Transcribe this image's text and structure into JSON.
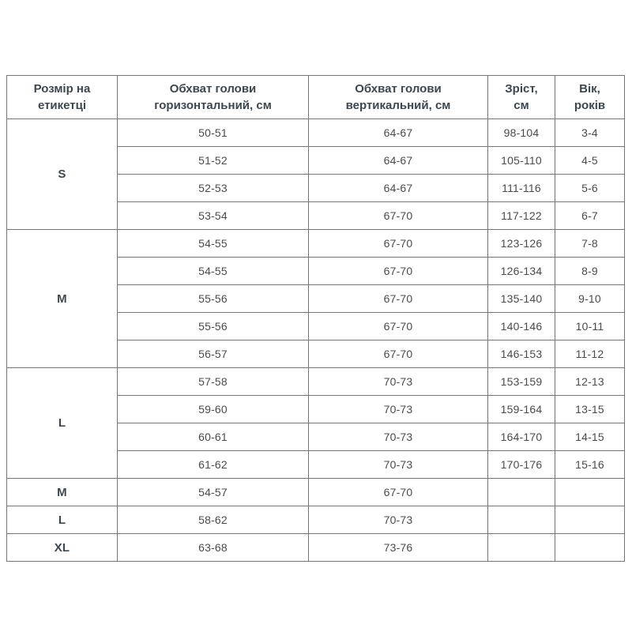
{
  "page": {
    "background_color": "#ffffff",
    "border_color": "#757575",
    "header_text_color": "#3e464e",
    "cell_text_color": "#4b4b4b"
  },
  "table": {
    "headers": [
      "Розмір на\nетикетці",
      "Обхват голови\nгоризонтальний, см",
      "Обхват голови\nвертикальний, см",
      "Зріст,\nсм",
      "Вік,\nроків"
    ],
    "groups": [
      {
        "size": "S",
        "rows": [
          [
            "50-51",
            "64-67",
            "98-104",
            "3-4"
          ],
          [
            "51-52",
            "64-67",
            "105-110",
            "4-5"
          ],
          [
            "52-53",
            "64-67",
            "111-116",
            "5-6"
          ],
          [
            "53-54",
            "67-70",
            "117-122",
            "6-7"
          ]
        ]
      },
      {
        "size": "M",
        "rows": [
          [
            "54-55",
            "67-70",
            "123-126",
            "7-8"
          ],
          [
            "54-55",
            "67-70",
            "126-134",
            "8-9"
          ],
          [
            "55-56",
            "67-70",
            "135-140",
            "9-10"
          ],
          [
            "55-56",
            "67-70",
            "140-146",
            "10-11"
          ],
          [
            "56-57",
            "67-70",
            "146-153",
            "11-12"
          ]
        ]
      },
      {
        "size": "L",
        "rows": [
          [
            "57-58",
            "70-73",
            "153-159",
            "12-13"
          ],
          [
            "59-60",
            "70-73",
            "159-164",
            "13-15"
          ],
          [
            "60-61",
            "70-73",
            "164-170",
            "14-15"
          ],
          [
            "61-62",
            "70-73",
            "170-176",
            "15-16"
          ]
        ]
      },
      {
        "size": "M",
        "rows": [
          [
            "54-57",
            "67-70",
            "",
            ""
          ]
        ]
      },
      {
        "size": "L",
        "rows": [
          [
            "58-62",
            "70-73",
            "",
            ""
          ]
        ]
      },
      {
        "size": "XL",
        "rows": [
          [
            "63-68",
            "73-76",
            "",
            ""
          ]
        ]
      }
    ]
  }
}
